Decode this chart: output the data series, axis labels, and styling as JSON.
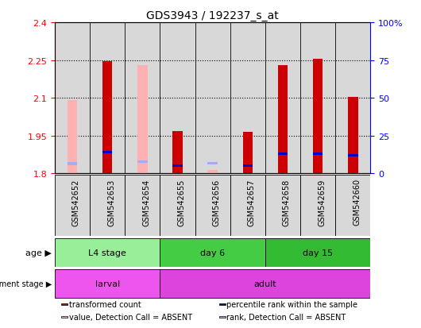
{
  "title": "GDS3943 / 192237_s_at",
  "samples": [
    "GSM542652",
    "GSM542653",
    "GSM542654",
    "GSM542655",
    "GSM542656",
    "GSM542657",
    "GSM542658",
    "GSM542659",
    "GSM542660"
  ],
  "transformed_count": [
    null,
    2.245,
    null,
    1.968,
    null,
    1.965,
    2.23,
    2.255,
    2.105
  ],
  "percentile_rank": [
    null,
    14.0,
    null,
    5.0,
    null,
    5.0,
    13.0,
    13.0,
    12.0
  ],
  "absent_value": [
    2.09,
    null,
    2.23,
    null,
    1.815,
    null,
    null,
    null,
    null
  ],
  "absent_rank": [
    6.5,
    null,
    8.0,
    null,
    7.0,
    null,
    null,
    null,
    null
  ],
  "ylim_left": [
    1.8,
    2.4
  ],
  "ylim_right": [
    0,
    100
  ],
  "yticks_left": [
    1.8,
    1.95,
    2.1,
    2.25,
    2.4
  ],
  "yticks_right": [
    0,
    25,
    50,
    75,
    100
  ],
  "ytick_labels_left": [
    "1.8",
    "1.95",
    "2.1",
    "2.25",
    "2.4"
  ],
  "ytick_labels_right": [
    "0",
    "25",
    "50",
    "75",
    "100%"
  ],
  "red_color": "#cc0000",
  "pink_color": "#ffb0b0",
  "blue_color": "#0000cc",
  "light_blue_color": "#aaaaee",
  "age_groups": [
    {
      "label": "L4 stage",
      "start": 0,
      "end": 3,
      "color": "#99ee99"
    },
    {
      "label": "day 6",
      "start": 3,
      "end": 6,
      "color": "#44cc44"
    },
    {
      "label": "day 15",
      "start": 6,
      "end": 9,
      "color": "#33bb33"
    }
  ],
  "dev_groups": [
    {
      "label": "larval",
      "start": 0,
      "end": 3,
      "color": "#ee55ee"
    },
    {
      "label": "adult",
      "start": 3,
      "end": 9,
      "color": "#dd44dd"
    }
  ],
  "age_label": "age",
  "dev_label": "development stage",
  "legend_items": [
    {
      "color": "#cc0000",
      "label": "transformed count"
    },
    {
      "color": "#0000cc",
      "label": "percentile rank within the sample"
    },
    {
      "color": "#ffb0b0",
      "label": "value, Detection Call = ABSENT"
    },
    {
      "color": "#aaaaee",
      "label": "rank, Detection Call = ABSENT"
    }
  ],
  "bg_color": "#d8d8d8",
  "base_value": 1.8
}
